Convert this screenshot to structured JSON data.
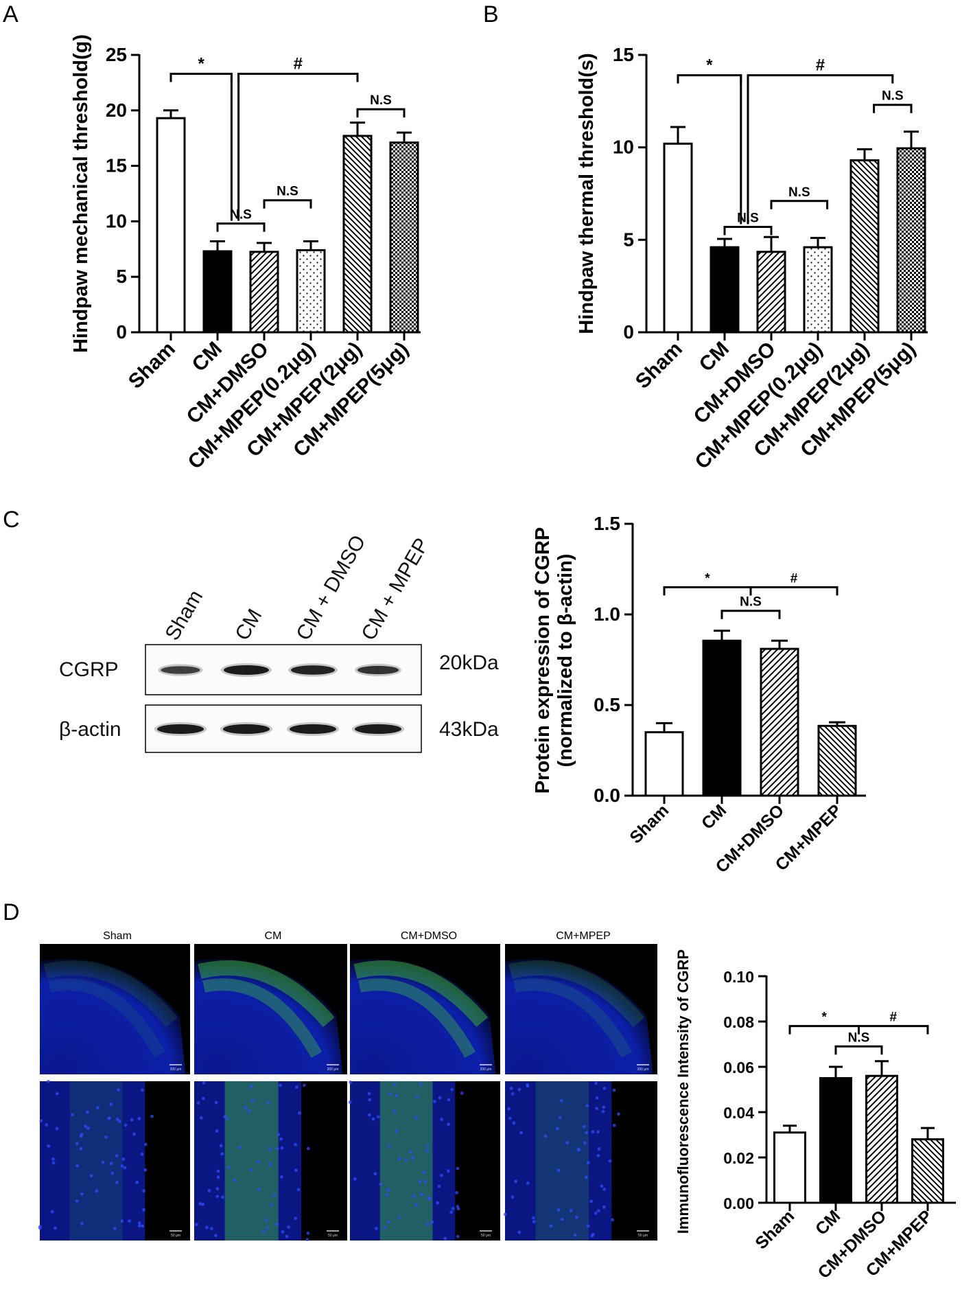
{
  "panel_labels": [
    "A",
    "B",
    "C",
    "D"
  ],
  "blot": {
    "lanes": [
      "Sham",
      "CM",
      "CM + DMSO",
      "CM + MPEP"
    ],
    "rows": [
      {
        "label": "CGRP",
        "size": "20kDa",
        "intensity": [
          0.55,
          1.0,
          0.9,
          0.7
        ]
      },
      {
        "label": "β-actin",
        "size": "43kDa",
        "intensity": [
          1.0,
          1.0,
          1.0,
          1.0
        ]
      }
    ]
  },
  "micrographs": {
    "columns": [
      "Sham",
      "CM",
      "CM+DMSO",
      "CM+MPEP"
    ],
    "scale_top": "200 μm",
    "scale_bottom": "50 μm",
    "green_intensity": [
      0.25,
      0.85,
      0.85,
      0.35
    ]
  },
  "colors": {
    "nuclear_stain": "#1a2fd6",
    "cgrp_stain": "#3fc43a",
    "background": "#000000"
  },
  "chart_data": [
    {
      "type": "bar",
      "panel": "A",
      "ylabel": "Hindpaw mechanical threshold(g)",
      "categories": [
        "Sham",
        "CM",
        "CM+DMSO",
        "CM+MPEP(0.2μg)",
        "CM+MPEP(2μg)",
        "CM+MPEP(5μg)"
      ],
      "values": [
        19.3,
        7.3,
        7.25,
        7.4,
        17.7,
        17.1
      ],
      "errors": [
        0.7,
        0.9,
        0.8,
        0.8,
        1.2,
        0.9
      ],
      "patterns": [
        "open",
        "solid",
        "diag",
        "dots",
        "backdiag",
        "checker"
      ],
      "ylim": [
        0,
        25
      ],
      "yticks": [
        0,
        5,
        10,
        15,
        20,
        25
      ],
      "annotations": [
        {
          "label": "*",
          "from": 0,
          "to": 1.3,
          "y": 23.3
        },
        {
          "label": "#",
          "from": 1.45,
          "to": 4,
          "y": 23.3
        },
        {
          "label": "N.S",
          "from": 1,
          "to": 2,
          "y": 9.8
        },
        {
          "label": "N.S",
          "from": 2,
          "to": 3,
          "y": 11.9
        },
        {
          "label": "N.S",
          "from": 4,
          "to": 5,
          "y": 20.1
        }
      ]
    },
    {
      "type": "bar",
      "panel": "B",
      "ylabel": "Hindpaw thermal threshold(s)",
      "categories": [
        "Sham",
        "CM",
        "CM+DMSO",
        "CM+MPEP(0.2μg)",
        "CM+MPEP(2μg)",
        "CM+MPEP(5μg)"
      ],
      "values": [
        10.2,
        4.6,
        4.35,
        4.6,
        9.3,
        9.95
      ],
      "errors": [
        0.9,
        0.45,
        0.8,
        0.5,
        0.6,
        0.9
      ],
      "patterns": [
        "open",
        "solid",
        "diag",
        "dots",
        "backdiag",
        "checker"
      ],
      "ylim": [
        0,
        15
      ],
      "yticks": [
        0,
        5,
        10,
        15
      ],
      "annotations": [
        {
          "label": "*",
          "from": 0,
          "to": 1.35,
          "y": 13.9
        },
        {
          "label": "#",
          "from": 1.5,
          "to": 4.6,
          "y": 13.9
        },
        {
          "label": "N.S",
          "from": 1,
          "to": 2,
          "y": 5.7
        },
        {
          "label": "N.S",
          "from": 2,
          "to": 3.2,
          "y": 7.1
        },
        {
          "label": "N.S",
          "from": 4.2,
          "to": 5,
          "y": 12.3
        }
      ]
    },
    {
      "type": "bar",
      "panel": "C",
      "ylabel": [
        "Protein expression of CGRP",
        "(normalized to β-actin)"
      ],
      "categories": [
        "Sham",
        "CM",
        "CM+DMSO",
        "CM+MPEP"
      ],
      "values": [
        0.35,
        0.855,
        0.81,
        0.385
      ],
      "errors": [
        0.05,
        0.055,
        0.045,
        0.02
      ],
      "patterns": [
        "open",
        "solid",
        "diag",
        "backdiag"
      ],
      "ylim": [
        0,
        1.5
      ],
      "yticks": [
        "0.0",
        "0.5",
        "1.0",
        "1.5"
      ],
      "annotations": [
        {
          "label": "*",
          "from": 0,
          "to": 1.5,
          "y": 1.15
        },
        {
          "label": "#",
          "from": 1.5,
          "to": 3,
          "y": 1.15
        },
        {
          "label": "N.S",
          "from": 1,
          "to": 2,
          "y": 1.02
        }
      ]
    },
    {
      "type": "bar",
      "panel": "D",
      "ylabel": "Immunofluorescence Intensity of CGRP",
      "categories": [
        "Sham",
        "CM",
        "CM+DMSO",
        "CM+MPEP"
      ],
      "values": [
        0.031,
        0.055,
        0.056,
        0.028
      ],
      "errors": [
        0.003,
        0.005,
        0.0065,
        0.005
      ],
      "patterns": [
        "open",
        "solid",
        "diag",
        "backdiag"
      ],
      "ylim": [
        0,
        0.1
      ],
      "yticks": [
        "0.00",
        "0.02",
        "0.04",
        "0.06",
        "0.08",
        "0.10"
      ],
      "annotations": [
        {
          "label": "*",
          "from": 0,
          "to": 1.5,
          "y": 0.078
        },
        {
          "label": "#",
          "from": 1.5,
          "to": 3,
          "y": 0.078
        },
        {
          "label": "N.S",
          "from": 1,
          "to": 2,
          "y": 0.069
        }
      ]
    }
  ]
}
